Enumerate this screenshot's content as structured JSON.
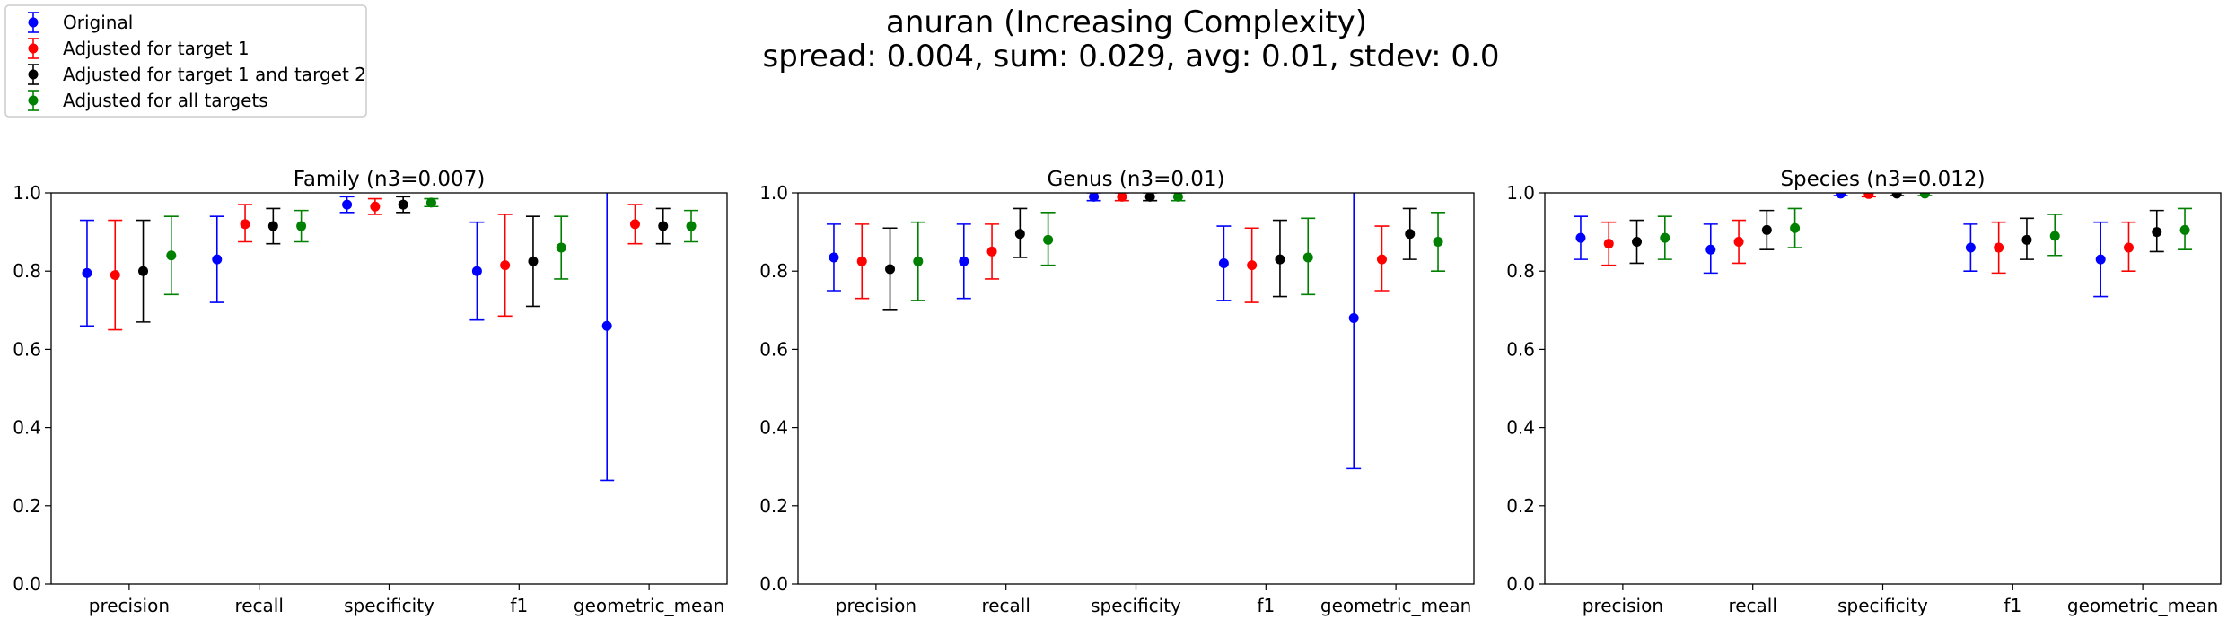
{
  "suptitle": {
    "line1": "anuran (Increasing Complexity)",
    "line2": "spread: 0.004, sum: 0.029, avg: 0.01, stdev: 0.0"
  },
  "legend": {
    "entries": [
      {
        "label": "Original",
        "color": "#0000ff"
      },
      {
        "label": "Adjusted for target 1",
        "color": "#ff0000"
      },
      {
        "label": "Adjusted for target 1 and target 2",
        "color": "#000000"
      },
      {
        "label": "Adjusted for all targets",
        "color": "#008000"
      }
    ]
  },
  "chart_data": [
    {
      "type": "scatter",
      "subtype": "errorbar",
      "title": "Family (n3=0.007)",
      "categories": [
        "precision",
        "recall",
        "specificity",
        "f1",
        "geometric_mean"
      ],
      "ylim": [
        0.0,
        1.0
      ],
      "yticks": [
        "0.0",
        "0.2",
        "0.4",
        "0.6",
        "0.8",
        "1.0"
      ],
      "series": [
        {
          "name": "Original",
          "color": "#0000ff",
          "points": [
            {
              "value": 0.795,
              "low": 0.66,
              "high": 0.93
            },
            {
              "value": 0.83,
              "low": 0.72,
              "high": 0.94
            },
            {
              "value": 0.97,
              "low": 0.95,
              "high": 0.99
            },
            {
              "value": 0.8,
              "low": 0.675,
              "high": 0.925
            },
            {
              "value": 0.66,
              "low": 0.265,
              "high": 1.06
            }
          ]
        },
        {
          "name": "Adjusted for target 1",
          "color": "#ff0000",
          "points": [
            {
              "value": 0.79,
              "low": 0.65,
              "high": 0.93
            },
            {
              "value": 0.92,
              "low": 0.875,
              "high": 0.97
            },
            {
              "value": 0.965,
              "low": 0.945,
              "high": 0.985
            },
            {
              "value": 0.815,
              "low": 0.685,
              "high": 0.945
            },
            {
              "value": 0.92,
              "low": 0.87,
              "high": 0.97
            }
          ]
        },
        {
          "name": "Adjusted for target 1 and target 2",
          "color": "#000000",
          "points": [
            {
              "value": 0.8,
              "low": 0.67,
              "high": 0.93
            },
            {
              "value": 0.915,
              "low": 0.87,
              "high": 0.96
            },
            {
              "value": 0.97,
              "low": 0.95,
              "high": 0.99
            },
            {
              "value": 0.825,
              "low": 0.71,
              "high": 0.94
            },
            {
              "value": 0.915,
              "low": 0.87,
              "high": 0.96
            }
          ]
        },
        {
          "name": "Adjusted for all targets",
          "color": "#008000",
          "points": [
            {
              "value": 0.84,
              "low": 0.74,
              "high": 0.94
            },
            {
              "value": 0.915,
              "low": 0.875,
              "high": 0.955
            },
            {
              "value": 0.975,
              "low": 0.965,
              "high": 0.985
            },
            {
              "value": 0.86,
              "low": 0.78,
              "high": 0.94
            },
            {
              "value": 0.915,
              "low": 0.875,
              "high": 0.955
            }
          ]
        }
      ]
    },
    {
      "type": "scatter",
      "subtype": "errorbar",
      "title": "Genus (n3=0.01)",
      "categories": [
        "precision",
        "recall",
        "specificity",
        "f1",
        "geometric_mean"
      ],
      "ylim": [
        0.0,
        1.0
      ],
      "yticks": [
        "0.0",
        "0.2",
        "0.4",
        "0.6",
        "0.8",
        "1.0"
      ],
      "series": [
        {
          "name": "Original",
          "color": "#0000ff",
          "points": [
            {
              "value": 0.835,
              "low": 0.75,
              "high": 0.92
            },
            {
              "value": 0.825,
              "low": 0.73,
              "high": 0.92
            },
            {
              "value": 0.99,
              "low": 0.98,
              "high": 1.0
            },
            {
              "value": 0.82,
              "low": 0.725,
              "high": 0.915
            },
            {
              "value": 0.68,
              "low": 0.295,
              "high": 1.06
            }
          ]
        },
        {
          "name": "Adjusted for target 1",
          "color": "#ff0000",
          "points": [
            {
              "value": 0.825,
              "low": 0.73,
              "high": 0.92
            },
            {
              "value": 0.85,
              "low": 0.78,
              "high": 0.92
            },
            {
              "value": 0.99,
              "low": 0.98,
              "high": 1.0
            },
            {
              "value": 0.815,
              "low": 0.72,
              "high": 0.91
            },
            {
              "value": 0.83,
              "low": 0.75,
              "high": 0.915
            }
          ]
        },
        {
          "name": "Adjusted for target 1 and target 2",
          "color": "#000000",
          "points": [
            {
              "value": 0.805,
              "low": 0.7,
              "high": 0.91
            },
            {
              "value": 0.895,
              "low": 0.835,
              "high": 0.96
            },
            {
              "value": 0.99,
              "low": 0.98,
              "high": 1.0
            },
            {
              "value": 0.83,
              "low": 0.735,
              "high": 0.93
            },
            {
              "value": 0.895,
              "low": 0.83,
              "high": 0.96
            }
          ]
        },
        {
          "name": "Adjusted for all targets",
          "color": "#008000",
          "points": [
            {
              "value": 0.825,
              "low": 0.725,
              "high": 0.925
            },
            {
              "value": 0.88,
              "low": 0.815,
              "high": 0.95
            },
            {
              "value": 0.99,
              "low": 0.98,
              "high": 1.0
            },
            {
              "value": 0.835,
              "low": 0.74,
              "high": 0.935
            },
            {
              "value": 0.875,
              "low": 0.8,
              "high": 0.95
            }
          ]
        }
      ]
    },
    {
      "type": "scatter",
      "subtype": "errorbar",
      "title": "Species (n3=0.012)",
      "categories": [
        "precision",
        "recall",
        "specificity",
        "f1",
        "geometric_mean"
      ],
      "ylim": [
        0.0,
        1.0
      ],
      "yticks": [
        "0.0",
        "0.2",
        "0.4",
        "0.6",
        "0.8",
        "1.0"
      ],
      "series": [
        {
          "name": "Original",
          "color": "#0000ff",
          "points": [
            {
              "value": 0.885,
              "low": 0.83,
              "high": 0.94
            },
            {
              "value": 0.855,
              "low": 0.795,
              "high": 0.92
            },
            {
              "value": 0.998,
              "low": 0.993,
              "high": 1.003
            },
            {
              "value": 0.86,
              "low": 0.8,
              "high": 0.92
            },
            {
              "value": 0.83,
              "low": 0.735,
              "high": 0.925
            }
          ]
        },
        {
          "name": "Adjusted for target 1",
          "color": "#ff0000",
          "points": [
            {
              "value": 0.87,
              "low": 0.815,
              "high": 0.925
            },
            {
              "value": 0.875,
              "low": 0.82,
              "high": 0.93
            },
            {
              "value": 0.997,
              "low": 0.99,
              "high": 1.003
            },
            {
              "value": 0.86,
              "low": 0.795,
              "high": 0.925
            },
            {
              "value": 0.86,
              "low": 0.8,
              "high": 0.925
            }
          ]
        },
        {
          "name": "Adjusted for target 1 and target 2",
          "color": "#000000",
          "points": [
            {
              "value": 0.875,
              "low": 0.82,
              "high": 0.93
            },
            {
              "value": 0.905,
              "low": 0.855,
              "high": 0.955
            },
            {
              "value": 0.998,
              "low": 0.993,
              "high": 1.003
            },
            {
              "value": 0.88,
              "low": 0.83,
              "high": 0.935
            },
            {
              "value": 0.9,
              "low": 0.85,
              "high": 0.955
            }
          ]
        },
        {
          "name": "Adjusted for all targets",
          "color": "#008000",
          "points": [
            {
              "value": 0.885,
              "low": 0.83,
              "high": 0.94
            },
            {
              "value": 0.91,
              "low": 0.86,
              "high": 0.96
            },
            {
              "value": 0.998,
              "low": 0.993,
              "high": 1.003
            },
            {
              "value": 0.89,
              "low": 0.84,
              "high": 0.945
            },
            {
              "value": 0.905,
              "low": 0.855,
              "high": 0.96
            }
          ]
        }
      ]
    }
  ]
}
